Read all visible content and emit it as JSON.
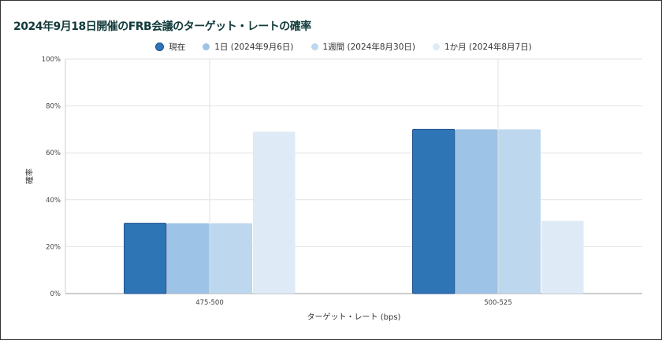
{
  "chart_data": {
    "type": "bar",
    "title": "2024年9月18日開催のFRB会議のターゲット・レートの確率",
    "xlabel": "ターゲット・レート (bps)",
    "ylabel": "確率",
    "categories": [
      "475-500",
      "500-525"
    ],
    "yticks": [
      "0%",
      "20%",
      "40%",
      "60%",
      "80%",
      "100%"
    ],
    "ylim": [
      0,
      100
    ],
    "legend_position": "top",
    "series": [
      {
        "name": "現在",
        "values": [
          30,
          70
        ],
        "color": "#2e75b6"
      },
      {
        "name": "1日 (2024年9月6日)",
        "values": [
          30,
          70
        ],
        "color": "#9dc3e6"
      },
      {
        "name": "1週間 (2024年8月30日)",
        "values": [
          30,
          70
        ],
        "color": "#bdd7ee"
      },
      {
        "name": "1か月 (2024年8月7日)",
        "values": [
          69,
          31
        ],
        "color": "#deebf7"
      }
    ]
  }
}
